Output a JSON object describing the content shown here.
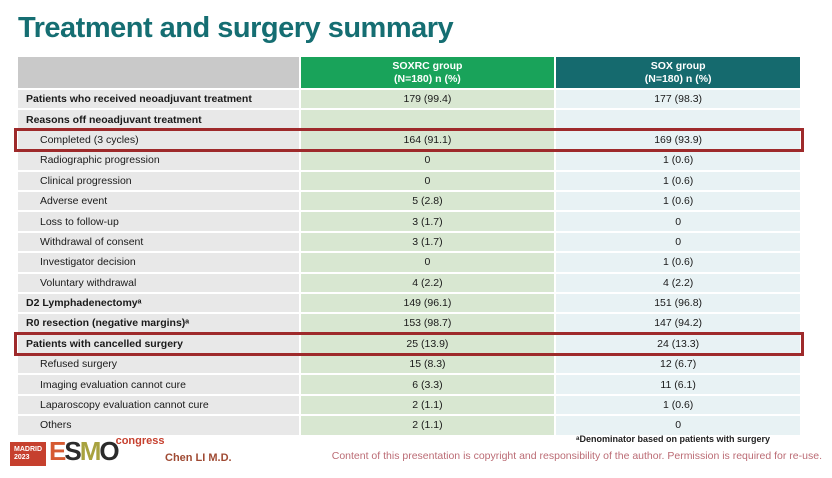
{
  "title": "Treatment and surgery summary",
  "table": {
    "header": {
      "soxrc_line1": "SOXRC group",
      "soxrc_line2": "(N=180)  n (%)",
      "sox_line1": "SOX group",
      "sox_line2": "(N=180)  n (%)"
    },
    "rows": [
      {
        "label": "Patients who received neoadjuvant treatment",
        "soxrc": "179 (99.4)",
        "sox": "177 (98.3)",
        "bold": true,
        "indent": false,
        "highlight": false
      },
      {
        "label": "Reasons off neoadjuvant treatment",
        "soxrc": "",
        "sox": "",
        "bold": true,
        "indent": false,
        "highlight": false
      },
      {
        "label": "Completed (3 cycles)",
        "soxrc": "164 (91.1)",
        "sox": "169 (93.9)",
        "bold": false,
        "indent": true,
        "highlight": true
      },
      {
        "label": "Radiographic progression",
        "soxrc": "0",
        "sox": "1 (0.6)",
        "bold": false,
        "indent": true,
        "highlight": false
      },
      {
        "label": "Clinical progression",
        "soxrc": "0",
        "sox": "1 (0.6)",
        "bold": false,
        "indent": true,
        "highlight": false
      },
      {
        "label": "Adverse event",
        "soxrc": "5 (2.8)",
        "sox": "1 (0.6)",
        "bold": false,
        "indent": true,
        "highlight": false
      },
      {
        "label": "Loss to follow-up",
        "soxrc": "3 (1.7)",
        "sox": "0",
        "bold": false,
        "indent": true,
        "highlight": false
      },
      {
        "label": "Withdrawal of consent",
        "soxrc": "3 (1.7)",
        "sox": "0",
        "bold": false,
        "indent": true,
        "highlight": false
      },
      {
        "label": "Investigator decision",
        "soxrc": "0",
        "sox": "1 (0.6)",
        "bold": false,
        "indent": true,
        "highlight": false
      },
      {
        "label": "Voluntary withdrawal",
        "soxrc": "4 (2.2)",
        "sox": "4 (2.2)",
        "bold": false,
        "indent": true,
        "highlight": false
      },
      {
        "label": "D2 Lymphadenectomyᵃ",
        "soxrc": "149 (96.1)",
        "sox": "151 (96.8)",
        "bold": true,
        "indent": false,
        "highlight": false
      },
      {
        "label": "R0 resection (negative margins)ᵃ",
        "soxrc": "153 (98.7)",
        "sox": "147 (94.2)",
        "bold": true,
        "indent": false,
        "highlight": false
      },
      {
        "label": "Patients with cancelled surgery",
        "soxrc": "25 (13.9)",
        "sox": "24 (13.3)",
        "bold": true,
        "indent": false,
        "highlight": true
      },
      {
        "label": "Refused surgery",
        "soxrc": "15 (8.3)",
        "sox": "12 (6.7)",
        "bold": false,
        "indent": true,
        "highlight": false
      },
      {
        "label": "Imaging evaluation cannot cure",
        "soxrc": "6 (3.3)",
        "sox": "11 (6.1)",
        "bold": false,
        "indent": true,
        "highlight": false
      },
      {
        "label": "Laparoscopy evaluation cannot cure",
        "soxrc": "2 (1.1)",
        "sox": "1 (0.6)",
        "bold": false,
        "indent": true,
        "highlight": false
      },
      {
        "label": "Others",
        "soxrc": "2 (1.1)",
        "sox": "0",
        "bold": false,
        "indent": true,
        "highlight": false
      }
    ]
  },
  "footer": {
    "logo": {
      "madrid_line1": "MADRID",
      "madrid_line2": "2023",
      "esmo_e": "E",
      "esmo_s": "S",
      "esmo_m": "M",
      "esmo_o": "O",
      "congress": "congress"
    },
    "author": "Chen LI M.D.",
    "footnote": "ᵃDenominator based on patients with surgery",
    "copyright": "Content of this presentation is copyright and responsibility of the author.  Permission is required for re-use."
  },
  "colors": {
    "title_teal": "#156e72",
    "header_green": "#19a35a",
    "header_teal": "#156a6e",
    "header_gray": "#c9c9c9",
    "label_cell_gray": "#e8e8e8",
    "soxrc_cell_green": "#d8e7d1",
    "sox_cell_blue": "#e8f2f4",
    "highlight_red": "#9e2a2b",
    "author_rust": "#9f4a33",
    "copyright_rose": "#bb6b74"
  }
}
